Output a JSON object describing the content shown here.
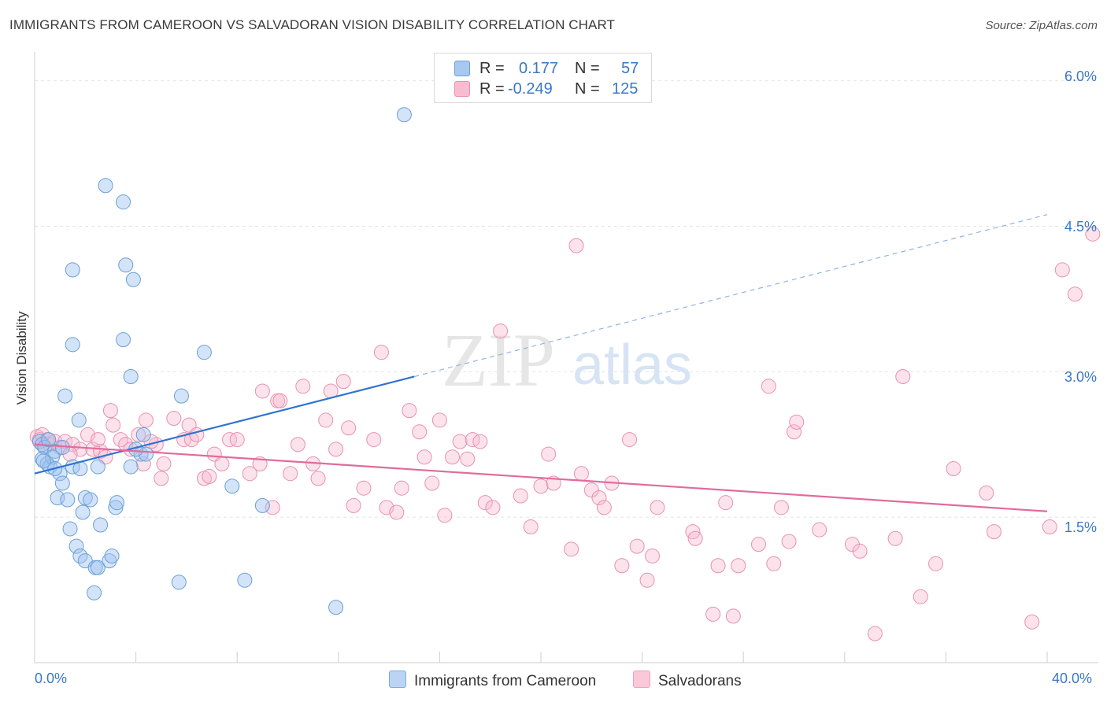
{
  "title": "IMMIGRANTS FROM CAMEROON VS SALVADORAN VISION DISABILITY CORRELATION CHART",
  "source": "Source: ZipAtlas.com",
  "watermark": {
    "zip": "ZIP",
    "atlas": "atlas"
  },
  "legend": {
    "r_label": "R =",
    "n_label": "N =",
    "rows": [
      {
        "r": "0.177",
        "n": "57",
        "color": "#a8c8f0",
        "border": "#6a9fd8"
      },
      {
        "r": "-0.249",
        "n": "125",
        "color": "#f8bcd0",
        "border": "#e890b0"
      }
    ]
  },
  "bottom_legend": [
    {
      "label": "Immigrants from Cameroon",
      "color": "#bcd4f4",
      "border": "#7fa8de"
    },
    {
      "label": "Salvadorans",
      "color": "#fac8d8",
      "border": "#eea0bc"
    }
  ],
  "chart_data": {
    "type": "scatter",
    "title": "IMMIGRANTS FROM CAMEROON VS SALVADORAN VISION DISABILITY CORRELATION CHART",
    "xlabel": "",
    "ylabel": "Vision Disability",
    "xlim": [
      0,
      40
    ],
    "ylim": [
      0,
      6.2
    ],
    "x_tick_labels": [
      "0.0%",
      "40.0%"
    ],
    "y_ticks": [
      1.5,
      3.0,
      4.5,
      6.0
    ],
    "y_tick_labels": [
      "1.5%",
      "3.0%",
      "4.5%",
      "6.0%"
    ],
    "grid": true,
    "legend_position": "top-center",
    "series": [
      {
        "name": "Immigrants from Cameroon",
        "color": "#6a9fd8",
        "fill": "rgba(160,195,240,0.45)",
        "trend": {
          "x0": 0,
          "y0": 1.95,
          "x1": 15,
          "y1": 2.95,
          "dash_to_x": 40,
          "dash_to_y": 4.62
        },
        "points": [
          [
            0.2,
            2.28
          ],
          [
            0.3,
            2.25
          ],
          [
            0.4,
            2.22
          ],
          [
            0.3,
            2.1
          ],
          [
            0.5,
            2.05
          ],
          [
            0.6,
            2.02
          ],
          [
            0.8,
            2.18
          ],
          [
            0.7,
            2.12
          ],
          [
            1.0,
            1.95
          ],
          [
            1.1,
            1.85
          ],
          [
            0.9,
            1.7
          ],
          [
            1.3,
            1.68
          ],
          [
            1.5,
            2.02
          ],
          [
            1.8,
            2.0
          ],
          [
            1.2,
            2.75
          ],
          [
            1.75,
            2.5
          ],
          [
            2.0,
            1.7
          ],
          [
            2.2,
            1.68
          ],
          [
            1.9,
            1.55
          ],
          [
            2.6,
            1.42
          ],
          [
            1.4,
            1.38
          ],
          [
            1.65,
            1.2
          ],
          [
            1.8,
            1.1
          ],
          [
            2.0,
            1.05
          ],
          [
            2.4,
            0.98
          ],
          [
            2.5,
            0.98
          ],
          [
            2.95,
            1.05
          ],
          [
            3.05,
            1.1
          ],
          [
            2.35,
            0.72
          ],
          [
            3.2,
            1.6
          ],
          [
            3.25,
            1.65
          ],
          [
            3.8,
            2.02
          ],
          [
            4.2,
            2.15
          ],
          [
            4.4,
            2.15
          ],
          [
            4.3,
            2.35
          ],
          [
            1.5,
            3.28
          ],
          [
            3.5,
            3.33
          ],
          [
            3.8,
            2.95
          ],
          [
            1.5,
            4.05
          ],
          [
            3.6,
            4.1
          ],
          [
            3.9,
            3.95
          ],
          [
            2.8,
            4.92
          ],
          [
            3.5,
            4.75
          ],
          [
            5.7,
            0.83
          ],
          [
            5.8,
            2.75
          ],
          [
            6.7,
            3.2
          ],
          [
            7.8,
            1.82
          ],
          [
            8.3,
            0.85
          ],
          [
            9.0,
            1.62
          ],
          [
            11.9,
            0.57
          ],
          [
            14.6,
            5.65
          ],
          [
            0.8,
            2.0
          ],
          [
            2.5,
            2.02
          ],
          [
            1.1,
            2.22
          ],
          [
            0.55,
            2.3
          ],
          [
            4.0,
            2.2
          ],
          [
            0.35,
            2.08
          ]
        ]
      },
      {
        "name": "Salvadorans",
        "color": "#e890b0",
        "fill": "rgba(248,185,205,0.4)",
        "trend": {
          "x0": 0,
          "y0": 2.25,
          "x1": 40,
          "y1": 1.56
        },
        "points": [
          [
            0.1,
            2.33
          ],
          [
            0.2,
            2.3
          ],
          [
            0.3,
            2.35
          ],
          [
            0.5,
            2.3
          ],
          [
            0.6,
            2.25
          ],
          [
            0.8,
            2.28
          ],
          [
            1.0,
            2.22
          ],
          [
            1.2,
            2.28
          ],
          [
            1.5,
            2.25
          ],
          [
            1.8,
            2.2
          ],
          [
            2.1,
            2.35
          ],
          [
            2.3,
            2.2
          ],
          [
            2.6,
            2.18
          ],
          [
            2.5,
            2.3
          ],
          [
            3.0,
            2.6
          ],
          [
            3.1,
            2.45
          ],
          [
            3.4,
            2.3
          ],
          [
            3.6,
            2.25
          ],
          [
            3.8,
            2.2
          ],
          [
            4.1,
            2.35
          ],
          [
            4.3,
            2.05
          ],
          [
            4.4,
            2.5
          ],
          [
            4.8,
            2.25
          ],
          [
            5.0,
            1.9
          ],
          [
            5.1,
            2.05
          ],
          [
            5.5,
            2.52
          ],
          [
            5.9,
            2.3
          ],
          [
            6.1,
            2.45
          ],
          [
            6.2,
            2.3
          ],
          [
            6.4,
            2.35
          ],
          [
            6.7,
            1.9
          ],
          [
            6.9,
            1.92
          ],
          [
            7.1,
            2.15
          ],
          [
            7.4,
            2.05
          ],
          [
            7.7,
            2.3
          ],
          [
            8.0,
            2.3
          ],
          [
            8.5,
            1.95
          ],
          [
            8.9,
            2.05
          ],
          [
            9.0,
            2.8
          ],
          [
            9.4,
            1.6
          ],
          [
            9.6,
            2.7
          ],
          [
            9.7,
            2.7
          ],
          [
            10.1,
            1.95
          ],
          [
            10.4,
            2.25
          ],
          [
            10.6,
            2.85
          ],
          [
            11.0,
            2.05
          ],
          [
            11.2,
            1.9
          ],
          [
            11.5,
            2.5
          ],
          [
            11.7,
            2.8
          ],
          [
            11.9,
            2.2
          ],
          [
            12.2,
            2.9
          ],
          [
            12.4,
            2.42
          ],
          [
            12.6,
            1.62
          ],
          [
            13.0,
            1.8
          ],
          [
            13.4,
            2.3
          ],
          [
            13.7,
            3.2
          ],
          [
            13.9,
            1.6
          ],
          [
            14.3,
            1.55
          ],
          [
            14.5,
            1.8
          ],
          [
            14.8,
            2.6
          ],
          [
            15.2,
            2.38
          ],
          [
            15.4,
            2.12
          ],
          [
            15.7,
            1.85
          ],
          [
            16.0,
            2.5
          ],
          [
            16.2,
            1.52
          ],
          [
            16.5,
            2.12
          ],
          [
            16.8,
            2.28
          ],
          [
            17.1,
            2.1
          ],
          [
            17.3,
            2.3
          ],
          [
            17.6,
            2.28
          ],
          [
            17.8,
            1.65
          ],
          [
            18.1,
            1.6
          ],
          [
            18.4,
            3.42
          ],
          [
            19.2,
            1.72
          ],
          [
            19.6,
            1.4
          ],
          [
            20.0,
            1.82
          ],
          [
            20.3,
            2.15
          ],
          [
            20.5,
            1.85
          ],
          [
            21.2,
            1.17
          ],
          [
            21.4,
            4.3
          ],
          [
            21.6,
            1.95
          ],
          [
            22.0,
            1.78
          ],
          [
            22.3,
            1.7
          ],
          [
            22.5,
            1.6
          ],
          [
            22.8,
            1.85
          ],
          [
            23.2,
            1.0
          ],
          [
            23.5,
            2.3
          ],
          [
            23.8,
            1.2
          ],
          [
            24.2,
            0.85
          ],
          [
            24.4,
            1.1
          ],
          [
            24.6,
            1.6
          ],
          [
            26.0,
            1.35
          ],
          [
            26.1,
            1.28
          ],
          [
            26.8,
            0.5
          ],
          [
            27.0,
            1.0
          ],
          [
            27.3,
            1.65
          ],
          [
            27.6,
            0.48
          ],
          [
            27.8,
            1.0
          ],
          [
            28.6,
            1.22
          ],
          [
            29.2,
            1.02
          ],
          [
            29.5,
            1.6
          ],
          [
            29.8,
            1.25
          ],
          [
            29.0,
            2.85
          ],
          [
            30.0,
            2.38
          ],
          [
            30.1,
            2.48
          ],
          [
            31.0,
            1.37
          ],
          [
            32.3,
            1.22
          ],
          [
            32.6,
            1.15
          ],
          [
            33.2,
            0.3
          ],
          [
            34.0,
            1.28
          ],
          [
            35.0,
            0.68
          ],
          [
            35.6,
            1.02
          ],
          [
            36.3,
            2.0
          ],
          [
            37.6,
            1.75
          ],
          [
            37.9,
            1.35
          ],
          [
            39.4,
            0.42
          ],
          [
            40.1,
            1.4
          ],
          [
            40.6,
            4.05
          ],
          [
            41.1,
            3.8
          ],
          [
            41.8,
            4.42
          ],
          [
            34.3,
            2.95
          ],
          [
            0.4,
            2.22
          ],
          [
            1.4,
            2.15
          ],
          [
            2.8,
            2.12
          ],
          [
            4.6,
            2.28
          ]
        ]
      }
    ]
  }
}
